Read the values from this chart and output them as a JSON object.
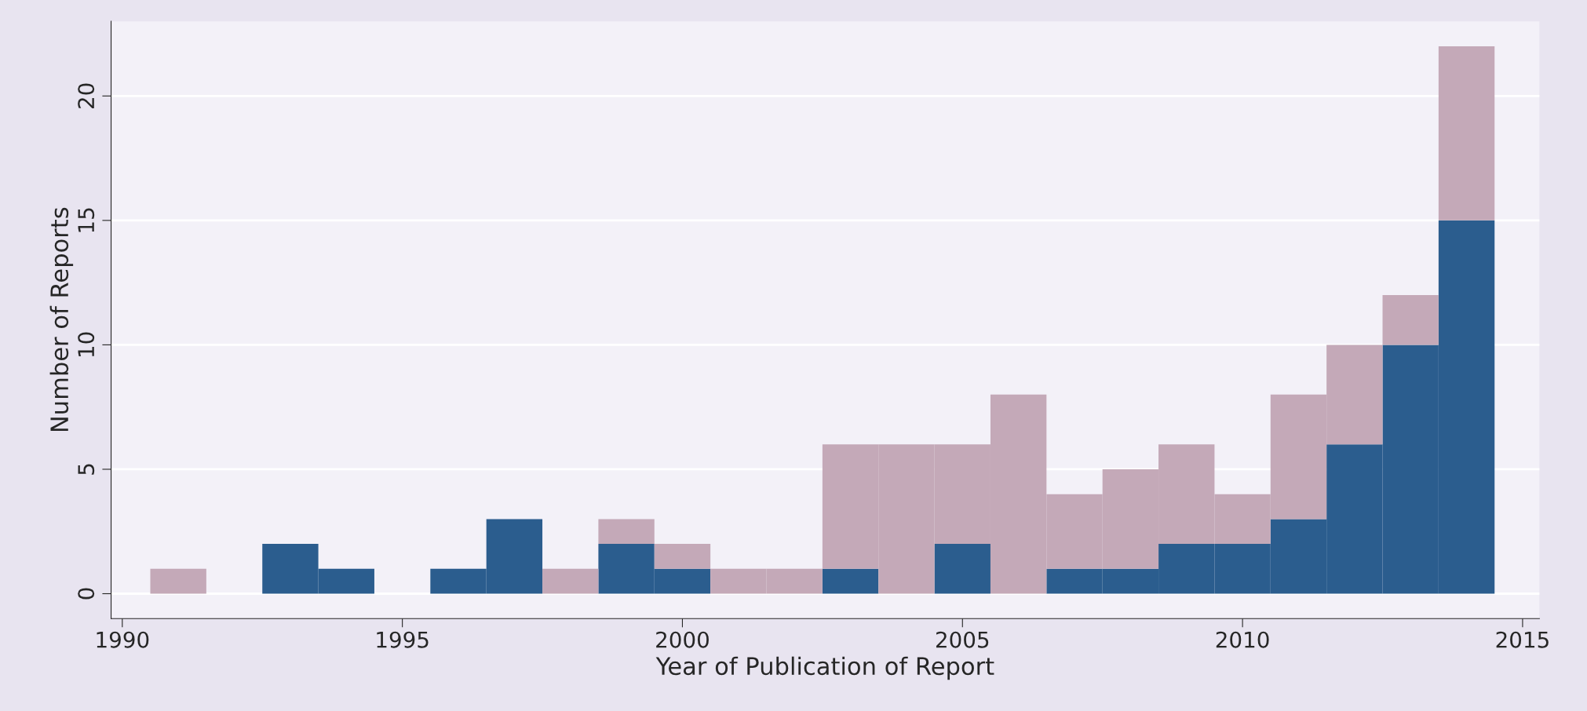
{
  "chart_data": {
    "type": "bar",
    "xlabel": "Year of Publication of Report",
    "ylabel": "Number of Reports",
    "x": [
      1991,
      1992,
      1993,
      1994,
      1995,
      1996,
      1997,
      1998,
      1999,
      2000,
      2001,
      2002,
      2003,
      2004,
      2005,
      2006,
      2007,
      2008,
      2009,
      2010,
      2011,
      2012,
      2013,
      2014
    ],
    "stacked": true,
    "series": [
      {
        "color": "#2b5d8e",
        "values": [
          0,
          0,
          2,
          1,
          0,
          1,
          3,
          0,
          2,
          1,
          0,
          0,
          1,
          0,
          2,
          0,
          1,
          1,
          2,
          2,
          3,
          6,
          10,
          15
        ]
      },
      {
        "color": "#c4a9b8",
        "values": [
          1,
          0,
          0,
          0,
          0,
          0,
          0,
          1,
          1,
          1,
          1,
          1,
          5,
          6,
          4,
          8,
          3,
          4,
          4,
          2,
          5,
          4,
          2,
          7
        ]
      }
    ],
    "xlim": [
      1989.8,
      2015.3
    ],
    "xticks": [
      1990,
      1995,
      2000,
      2005,
      2010,
      2015
    ],
    "ylim": [
      -1,
      23
    ],
    "yticks": [
      0,
      5,
      10,
      15,
      20
    ],
    "grid": "y"
  }
}
